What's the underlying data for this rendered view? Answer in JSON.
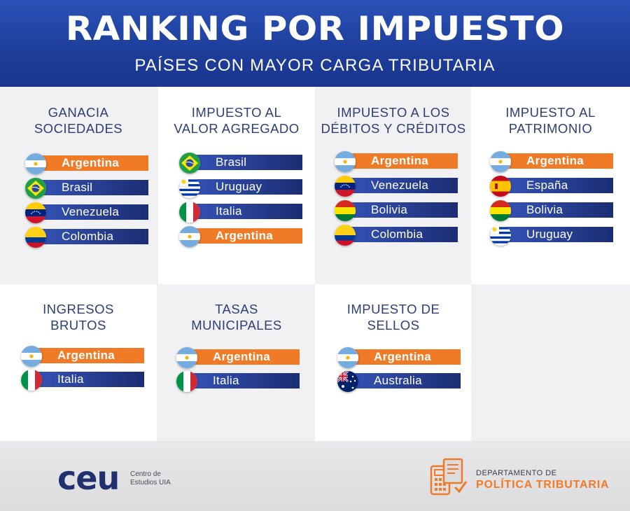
{
  "header": {
    "title": "RANKING POR IMPUESTO",
    "subtitle": "PAÍSES CON MAYOR CARGA TRIBUTARIA"
  },
  "categories": [
    {
      "title_lines": [
        "GANACIA",
        "SOCIEDADES"
      ],
      "countries": [
        {
          "name": "Argentina",
          "flag": "argentina-flag",
          "highlight": true
        },
        {
          "name": "Brasil",
          "flag": "brazil-flag",
          "highlight": false
        },
        {
          "name": "Venezuela",
          "flag": "venezuela-flag",
          "highlight": false
        },
        {
          "name": "Colombia",
          "flag": "colombia-flag",
          "highlight": false
        }
      ]
    },
    {
      "title_lines": [
        "IMPUESTO AL",
        "VALOR AGREGADO"
      ],
      "countries": [
        {
          "name": "Brasil",
          "flag": "brazil-flag",
          "highlight": false
        },
        {
          "name": "Uruguay",
          "flag": "uruguay-flag",
          "highlight": false
        },
        {
          "name": "Italia",
          "flag": "italy-flag",
          "highlight": false
        },
        {
          "name": "Argentina",
          "flag": "argentina-flag",
          "highlight": true
        }
      ]
    },
    {
      "title_lines": [
        "IMPUESTO A LOS",
        "DÉBITOS Y CRÉDITOS"
      ],
      "countries": [
        {
          "name": "Argentina",
          "flag": "argentina-flag",
          "highlight": true
        },
        {
          "name": "Venezuela",
          "flag": "venezuela-flag",
          "highlight": false
        },
        {
          "name": "Bolivia",
          "flag": "bolivia-flag",
          "highlight": false
        },
        {
          "name": "Colombia",
          "flag": "colombia-flag",
          "highlight": false
        }
      ]
    },
    {
      "title_lines": [
        "IMPUESTO AL",
        "PATRIMONIO"
      ],
      "countries": [
        {
          "name": "Argentina",
          "flag": "argentina-flag",
          "highlight": true
        },
        {
          "name": "España",
          "flag": "spain-flag",
          "highlight": false
        },
        {
          "name": "Bolivia",
          "flag": "bolivia-flag",
          "highlight": false
        },
        {
          "name": "Uruguay",
          "flag": "uruguay-flag",
          "highlight": false
        }
      ]
    },
    {
      "title_lines": [
        "INGRESOS",
        "BRUTOS"
      ],
      "countries": [
        {
          "name": "Argentina",
          "flag": "argentina-flag",
          "highlight": true
        },
        {
          "name": "Italia",
          "flag": "italy-flag",
          "highlight": false
        }
      ]
    },
    {
      "title_lines": [
        "TASAS",
        "MUNICIPALES"
      ],
      "countries": [
        {
          "name": "Argentina",
          "flag": "argentina-flag",
          "highlight": true
        },
        {
          "name": "Italia",
          "flag": "italy-flag",
          "highlight": false
        }
      ]
    },
    {
      "title_lines": [
        "IMPUESTO DE",
        "SELLOS"
      ],
      "countries": [
        {
          "name": "Argentina",
          "flag": "argentina-flag",
          "highlight": true
        },
        {
          "name": "Australia",
          "flag": "australia-flag",
          "highlight": false
        }
      ]
    }
  ],
  "footer": {
    "ceu_logo": "ceu",
    "ceu_sub": [
      "Centro de",
      "Estudios UIA"
    ],
    "dept_line1": "DEPARTAMENTO DE",
    "dept_line2": "POLÍTICA TRIBUTARIA",
    "dept_icon": "calculator-document-icon"
  },
  "colors": {
    "header_blue": "#1d3d99",
    "bar_blue": "#1b2d73",
    "highlight_orange": "#f07a26",
    "title_text": "#2c3e74"
  }
}
